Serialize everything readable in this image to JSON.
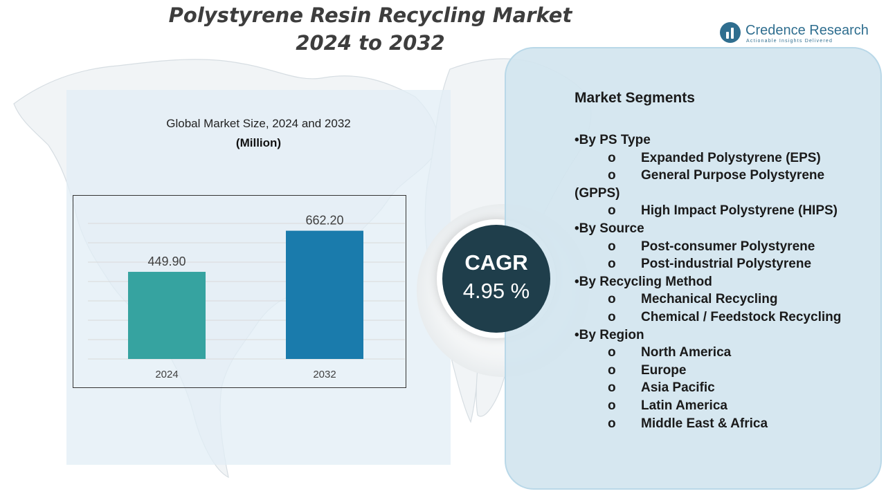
{
  "title": {
    "line1": "Polystyrene Resin Recycling Market",
    "line2": "2024 to 2032"
  },
  "logo": {
    "name": "Credence Research",
    "tagline": "Actionable Insights Delivered",
    "icon": "bar-chart-circle-icon"
  },
  "chart_data": {
    "type": "bar",
    "title": "Global Market Size, 2024 and 2032",
    "unit": "(Million)",
    "categories": [
      "2024",
      "2032"
    ],
    "values": [
      449.9,
      662.2
    ],
    "value_labels": [
      "449.90",
      "662.20"
    ],
    "colors": [
      "#36a3a0",
      "#1a7bac"
    ],
    "ylim": [
      0,
      800
    ],
    "grid": true,
    "legend": "none"
  },
  "cagr": {
    "label": "CAGR",
    "value": "4.95 %"
  },
  "segments": {
    "title": "Market Segments",
    "groups": [
      {
        "heading": "•By PS Type",
        "items": [
          "Expanded Polystyrene (EPS)",
          "General Purpose Polystyrene (GPPS)",
          "High Impact Polystyrene (HIPS)"
        ]
      },
      {
        "heading": "•By Source",
        "items": [
          "Post-consumer Polystyrene",
          "Post-industrial Polystyrene"
        ]
      },
      {
        "heading": "•By Recycling Method",
        "items": [
          "Mechanical Recycling",
          "Chemical / Feedstock Recycling"
        ]
      },
      {
        "heading": "•By Region",
        "items": [
          "North America",
          "Europe",
          "Asia Pacific",
          "Latin America",
          "Middle East & Africa"
        ]
      }
    ],
    "bullet": "o"
  },
  "colors": {
    "cagr_circle": "#1f3e4b",
    "panel_bg": "#d3e5ef",
    "logo": "#2f6e8f"
  }
}
